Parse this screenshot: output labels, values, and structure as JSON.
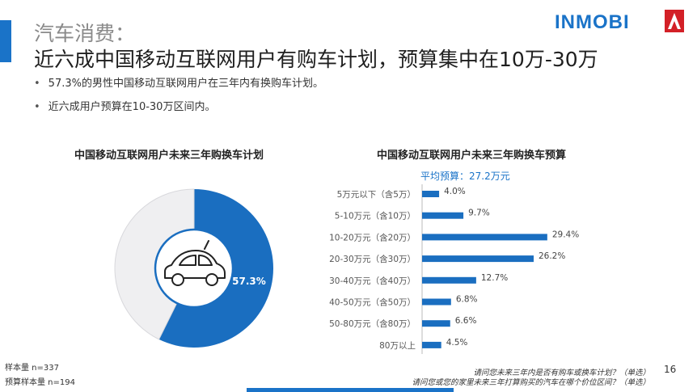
{
  "header": {
    "title_line1": "汽车消费：",
    "title_line2": "近六成中国移动互联网用户有购车计划，预算集中在10万-30万",
    "logo_text": "INMOBI"
  },
  "bullets": [
    "57.3%的男性中国移动互联网用户在三年内有换购车计划。",
    "近六成用户预算在10-30万区间内。"
  ],
  "chart_data": [
    {
      "type": "pie",
      "title": "中国移动互联网用户未来三年购换车计划",
      "slices": [
        {
          "value": 57.3,
          "label": "57.3%",
          "color": "#1a6ec0"
        },
        {
          "value": 42.7,
          "label": "",
          "color": "#efeff1"
        }
      ],
      "center_icon": "car-icon"
    },
    {
      "type": "bar",
      "orientation": "horizontal",
      "title": "中国移动互联网用户未来三年购换车预算",
      "subtitle": "平均预算：27.2万元",
      "categories": [
        "5万元以下（含5万）",
        "5-10万元（含10万）",
        "10-20万元（含20万）",
        "20-30万元（含30万）",
        "30-40万元（含40万）",
        "40-50万元（含50万）",
        "50-80万元（含80万）",
        "80万以上"
      ],
      "values": [
        4.0,
        9.7,
        29.4,
        26.2,
        12.7,
        6.8,
        6.6,
        4.5
      ],
      "value_labels": [
        "4.0%",
        "9.7%",
        "29.4%",
        "26.2%",
        "12.7%",
        "6.8%",
        "6.6%",
        "4.5%"
      ],
      "color": "#1a6ec0"
    }
  ],
  "footer": {
    "sample1": "样本量 n=337",
    "sample2": "预算样本量 n=194",
    "question1": "请问您未来三年内是否有购车或换车计划？（单选）",
    "question2": "请问您或您的家里未来三年打算购买的汽车在哪个价位区间？（单选）",
    "page_number": "16"
  }
}
